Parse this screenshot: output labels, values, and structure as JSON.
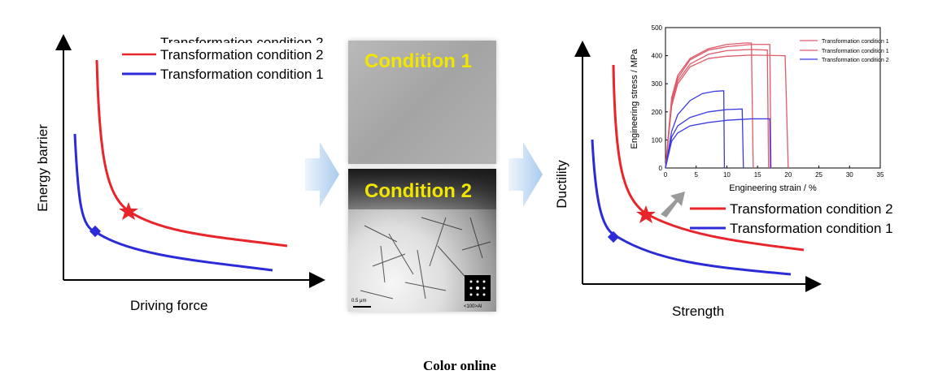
{
  "caption": "Color online",
  "colors": {
    "condition2": "#e8252b",
    "condition1": "#2b2bd8",
    "arrow": "#c9e0f5",
    "inset_arrow": "#9a9a9a"
  },
  "left_panel": {
    "ylabel": "Energy barrier",
    "xlabel": "Driving force",
    "legend": [
      "Transformation condition 2",
      "Transformation condition 1"
    ],
    "overprint": "Transformation condition 2"
  },
  "middle_panel": {
    "top_title": "Condition 1",
    "bottom_title": "Condition 2",
    "scale_label": "0.5 μm",
    "zone_label": "<100>Al"
  },
  "right_panel": {
    "ylabel": "Ductility",
    "xlabel": "Strength",
    "legend": [
      "Transformation condition 2",
      "Transformation condition 1"
    ]
  },
  "chart_data": {
    "type": "line",
    "title": "",
    "xlabel": "Engineering strain / %",
    "ylabel": "Engineering stress / MPa",
    "xlim": [
      0,
      35
    ],
    "ylim": [
      0,
      500
    ],
    "xticks": [
      0,
      5,
      10,
      15,
      20,
      25,
      30,
      35
    ],
    "yticks": [
      0,
      100,
      200,
      300,
      400,
      500
    ],
    "legend": [
      "Transformation condition 1",
      "Transformation condition 2"
    ],
    "legend_placement": "top-right",
    "series": [
      {
        "name": "Transformation condition 1",
        "color": "#e05a6a",
        "x": [
          0,
          1,
          2,
          4,
          7,
          10,
          13,
          14,
          14.3
        ],
        "y": [
          0,
          250,
          330,
          390,
          425,
          440,
          445,
          445,
          0
        ]
      },
      {
        "name": "Transformation condition 1",
        "color": "#e05a6a",
        "x": [
          0,
          1,
          2,
          4,
          7,
          10,
          14,
          17,
          17.2
        ],
        "y": [
          0,
          240,
          320,
          385,
          420,
          432,
          440,
          440,
          0
        ]
      },
      {
        "name": "Transformation condition 1",
        "color": "#e05a6a",
        "x": [
          0,
          1,
          2,
          4,
          7,
          10,
          14,
          16.6,
          16.8
        ],
        "y": [
          0,
          230,
          310,
          370,
          405,
          418,
          422,
          420,
          0
        ]
      },
      {
        "name": "Transformation condition 1",
        "color": "#e05a6a",
        "x": [
          0,
          1,
          2,
          4,
          7,
          10,
          14,
          19.5,
          20
        ],
        "y": [
          0,
          220,
          300,
          360,
          390,
          398,
          402,
          400,
          0
        ]
      },
      {
        "name": "Transformation condition 2",
        "color": "#3a3ae0",
        "x": [
          0,
          1,
          2,
          4,
          6,
          8,
          9.5,
          9.6
        ],
        "y": [
          0,
          130,
          190,
          240,
          265,
          273,
          275,
          0
        ]
      },
      {
        "name": "Transformation condition 2",
        "color": "#3a3ae0",
        "x": [
          0,
          1,
          2,
          4,
          7,
          10,
          12.5,
          12.7
        ],
        "y": [
          0,
          110,
          150,
          180,
          200,
          208,
          210,
          0
        ]
      },
      {
        "name": "Transformation condition 2",
        "color": "#3a3ae0",
        "x": [
          0,
          1,
          2,
          4,
          7,
          10,
          14,
          17,
          17.1
        ],
        "y": [
          0,
          95,
          125,
          150,
          162,
          170,
          175,
          175,
          0
        ]
      }
    ]
  }
}
